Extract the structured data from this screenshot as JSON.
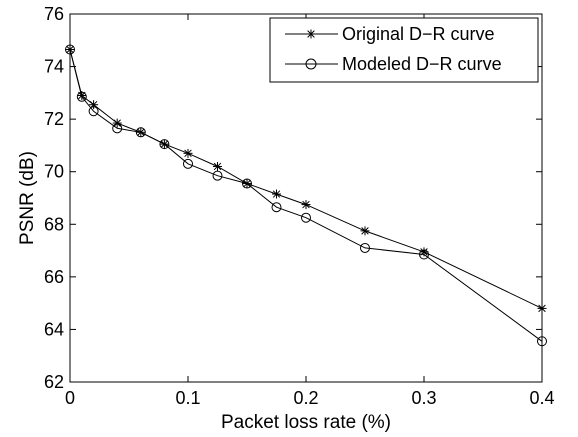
{
  "chart_data": {
    "type": "line",
    "title": "",
    "xlabel": "Packet loss rate (%)",
    "ylabel": "PSNR (dB)",
    "xlim": [
      0,
      0.4
    ],
    "ylim": [
      62,
      76
    ],
    "xticks": [
      0,
      0.1,
      0.2,
      0.3,
      0.4
    ],
    "xtick_labels": [
      "0",
      "0.1",
      "0.2",
      "0.3",
      "0.4"
    ],
    "yticks": [
      62,
      64,
      66,
      68,
      70,
      72,
      74,
      76
    ],
    "ytick_labels": [
      "62",
      "64",
      "66",
      "68",
      "70",
      "72",
      "74",
      "76"
    ],
    "grid": false,
    "legend_position": "top-right",
    "x": [
      0,
      0.01,
      0.02,
      0.04,
      0.06,
      0.08,
      0.1,
      0.125,
      0.15,
      0.175,
      0.2,
      0.25,
      0.3,
      0.4
    ],
    "series": [
      {
        "name": "Original D−R curve",
        "marker": "star",
        "color": "#000000",
        "values": [
          74.65,
          72.9,
          72.55,
          71.85,
          71.5,
          71.05,
          70.7,
          70.2,
          69.55,
          69.15,
          68.75,
          67.75,
          66.95,
          64.8
        ]
      },
      {
        "name": "Modeled D−R curve",
        "marker": "circle",
        "color": "#000000",
        "values": [
          74.65,
          72.85,
          72.3,
          71.65,
          71.5,
          71.05,
          70.3,
          69.85,
          69.55,
          68.65,
          68.25,
          67.1,
          66.85,
          63.55
        ]
      }
    ]
  }
}
